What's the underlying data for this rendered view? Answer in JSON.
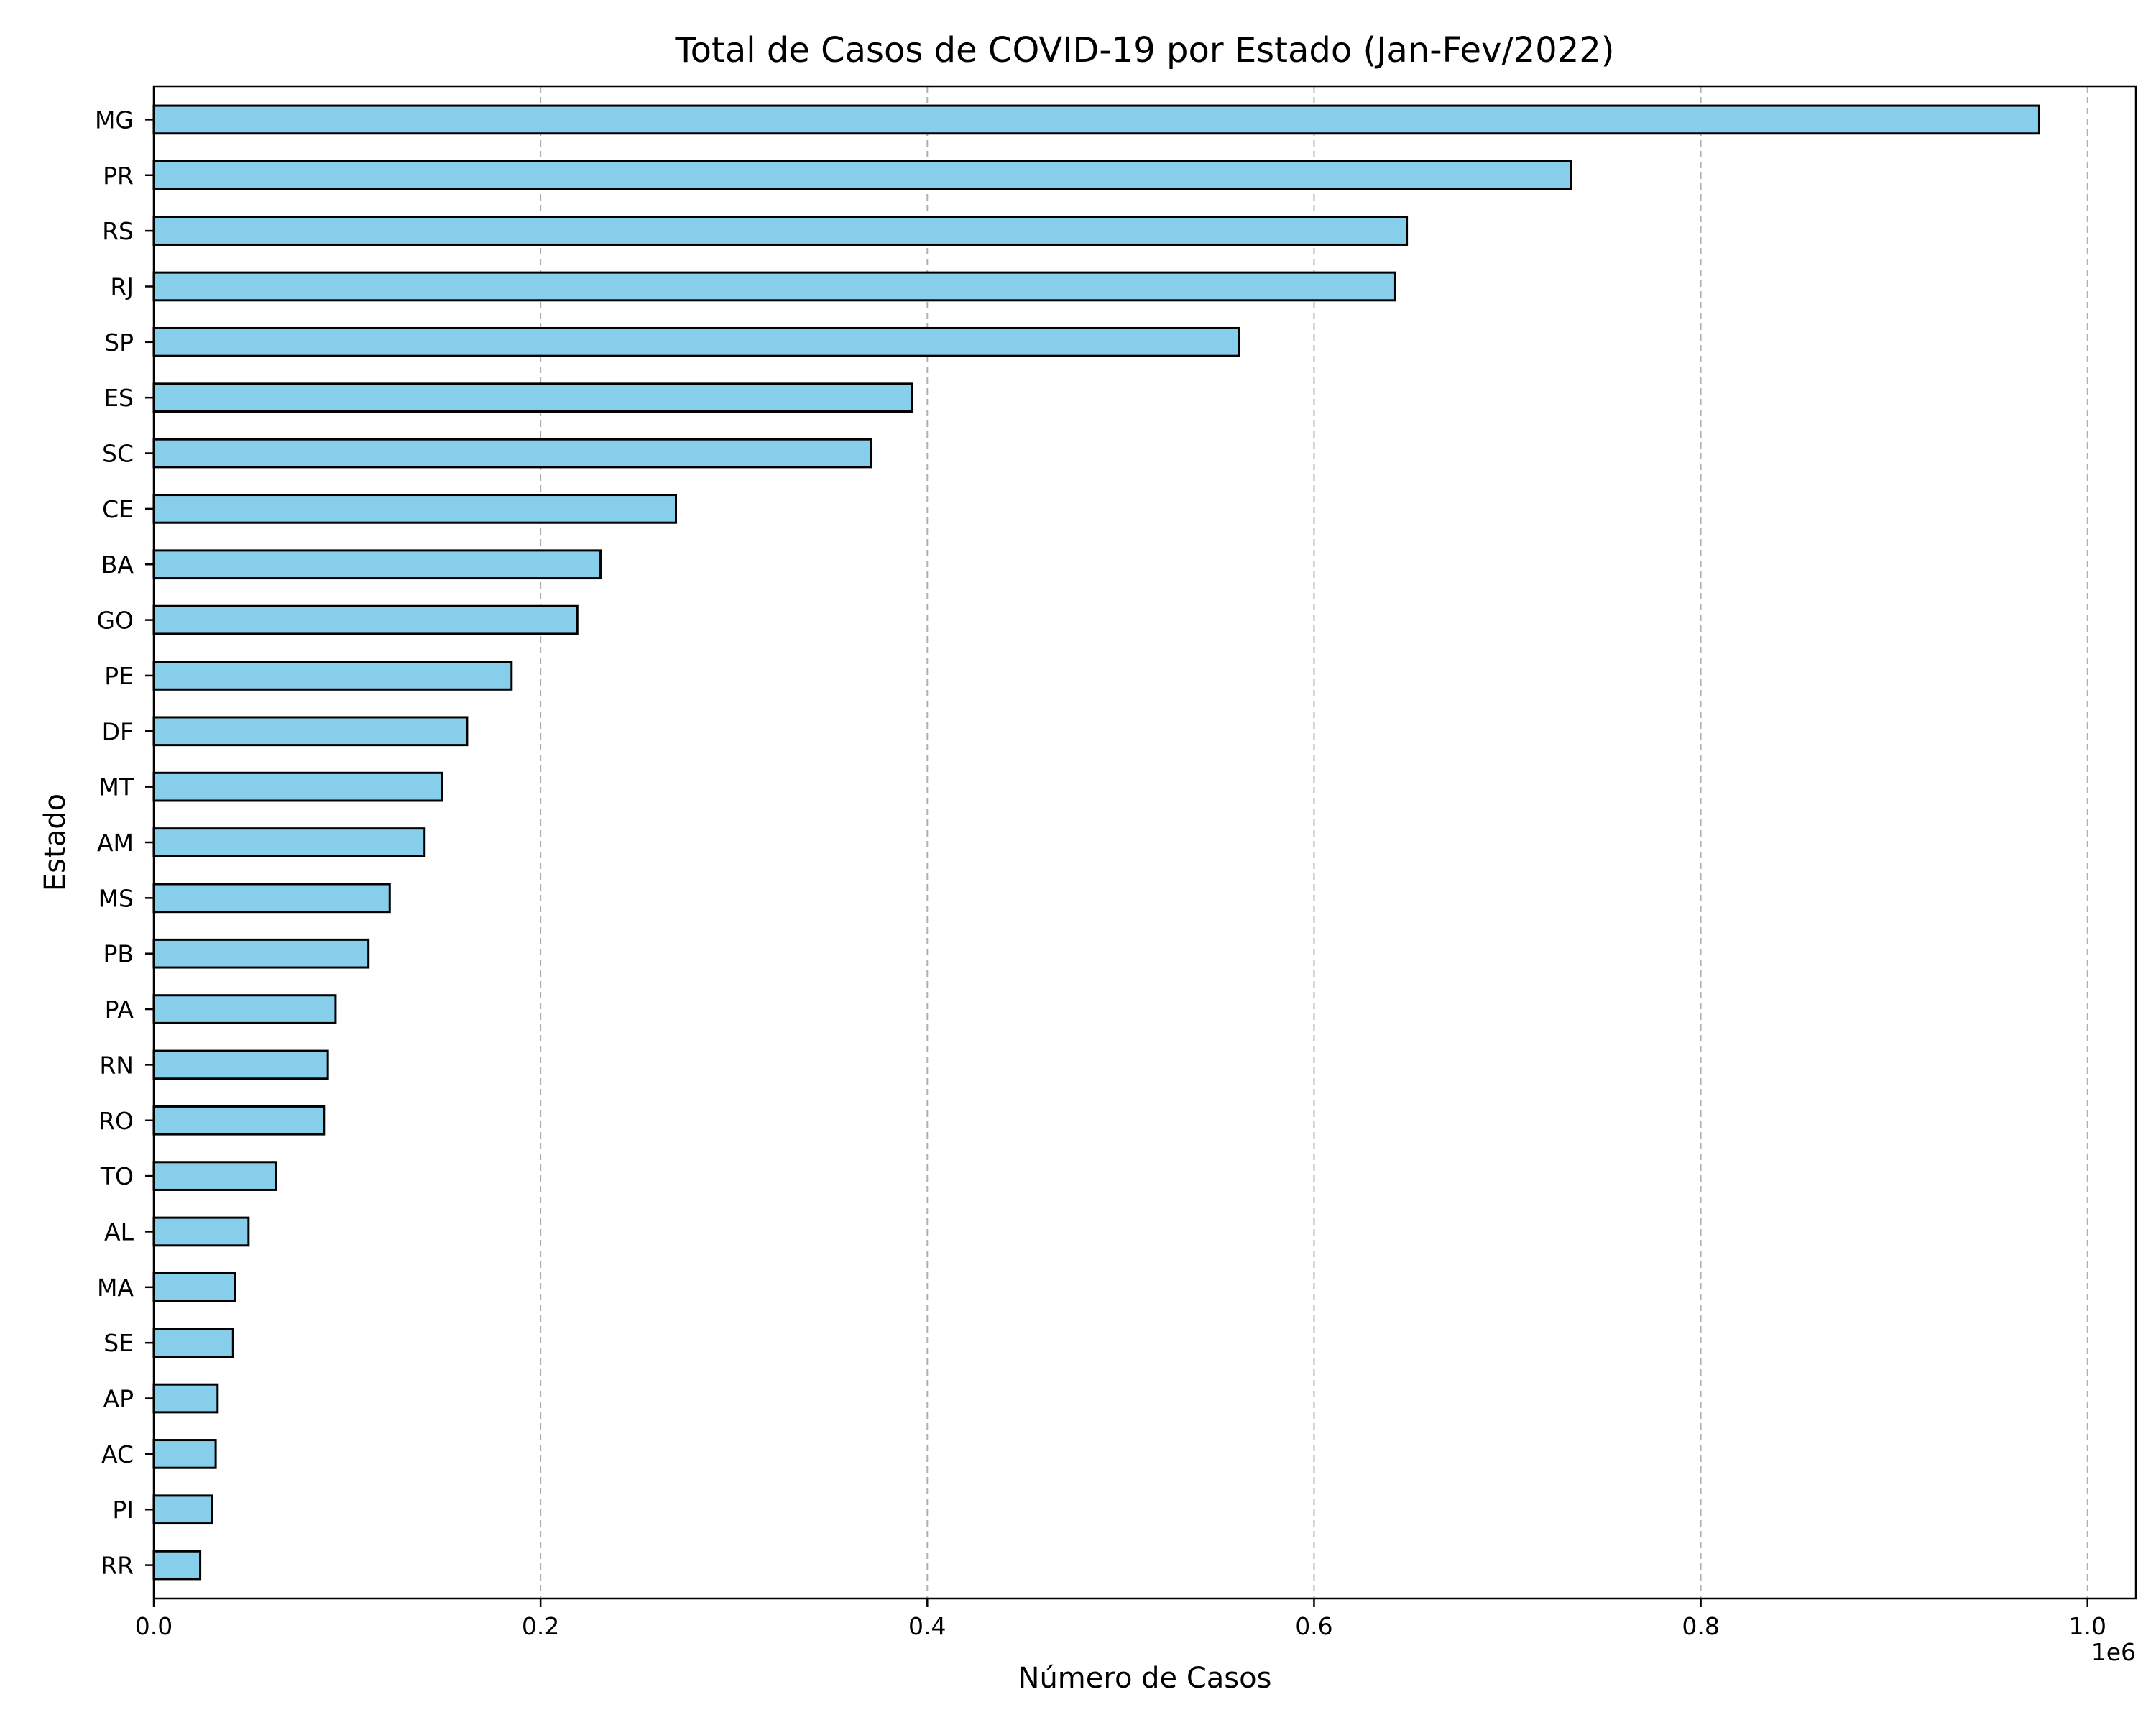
{
  "chart_data": {
    "type": "bar",
    "orientation": "horizontal",
    "title": "Total de Casos de COVID-19 por Estado (Jan-Fev/2022)",
    "xlabel": "Número de Casos",
    "ylabel": "Estado",
    "x_offset_label": "1e6",
    "x_scale_factor": 1000000,
    "xlim": [
      0,
      1025000
    ],
    "x_ticks": [
      0,
      200000,
      400000,
      600000,
      800000,
      1000000
    ],
    "x_tick_labels": [
      "0.0",
      "0.2",
      "0.4",
      "0.6",
      "0.8",
      "1.0"
    ],
    "grid": "x-dashed",
    "bar_color": "#87ceeb",
    "edge_color": "#000000",
    "categories": [
      "MG",
      "PR",
      "RS",
      "RJ",
      "SP",
      "ES",
      "SC",
      "CE",
      "BA",
      "GO",
      "PE",
      "DF",
      "MT",
      "AM",
      "MS",
      "PB",
      "PA",
      "RN",
      "RO",
      "TO",
      "AL",
      "MA",
      "SE",
      "AP",
      "AC",
      "PI",
      "RR"
    ],
    "values": [
      975000,
      733000,
      648000,
      642000,
      561000,
      392000,
      371000,
      270000,
      231000,
      219000,
      185000,
      162000,
      149000,
      140000,
      122000,
      111000,
      94000,
      90000,
      88000,
      63000,
      49000,
      42000,
      41000,
      33000,
      32000,
      30000,
      24000
    ]
  }
}
